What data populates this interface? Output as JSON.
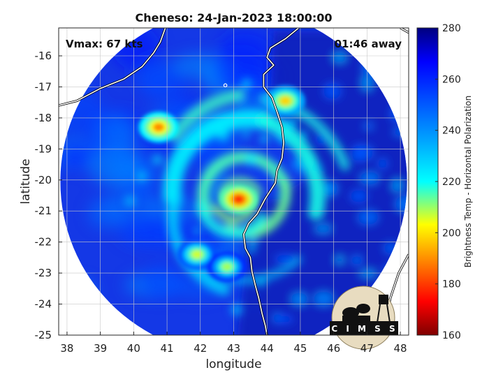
{
  "chart_data": {
    "type": "heatmap",
    "title": "Cheneso: 24-Jan-2023 18:00:00",
    "xlabel": "longitude",
    "ylabel": "latitude",
    "xlim": [
      37.75,
      48.25
    ],
    "ylim": [
      -25,
      -15.1
    ],
    "xticks": [
      38,
      39,
      40,
      41,
      42,
      43,
      44,
      45,
      46,
      47,
      48
    ],
    "yticks": [
      -16,
      -17,
      -18,
      -19,
      -20,
      -21,
      -22,
      -23,
      -24,
      -25
    ],
    "xtick_labels": [
      "38",
      "39",
      "40",
      "41",
      "42",
      "43",
      "44",
      "45",
      "46",
      "47",
      "48"
    ],
    "ytick_labels": [
      "-16",
      "-17",
      "-18",
      "-19",
      "-20",
      "-21",
      "-22",
      "-23",
      "-24",
      "-25"
    ],
    "grid": true,
    "annotations": {
      "intensity": "Vmax: 67 kts",
      "time_offset": "01:46 away"
    },
    "swath": {
      "center_lon": 43.0,
      "center_lat": -20.05,
      "radius_deg": 5.2
    },
    "storm_center": {
      "lon": 43.15,
      "lat": -20.65
    },
    "colorbar": {
      "label": "Brightness Temp - Horizontal Polarization",
      "min": 160,
      "max": 280,
      "ticks": [
        160,
        180,
        200,
        220,
        240,
        260,
        280
      ],
      "tick_labels": [
        "160",
        "180",
        "200",
        "220",
        "240",
        "260",
        "280"
      ],
      "colormap": "jet"
    },
    "features": [
      {
        "name": "eyewall core",
        "lon": 43.15,
        "lat": -20.62,
        "min_temp": 180
      },
      {
        "name": "west rainband core",
        "lon": 40.75,
        "lat": -18.3,
        "min_temp": 190
      },
      {
        "name": "north-east rainband core",
        "lon": 44.55,
        "lat": -17.45,
        "min_temp": 200
      },
      {
        "name": "south-west cell",
        "lon": 41.9,
        "lat": -22.4,
        "min_temp": 210
      },
      {
        "name": "south cell",
        "lon": 42.8,
        "lat": -22.8,
        "min_temp": 215
      }
    ]
  },
  "logo": {
    "text": "CIMSS"
  }
}
